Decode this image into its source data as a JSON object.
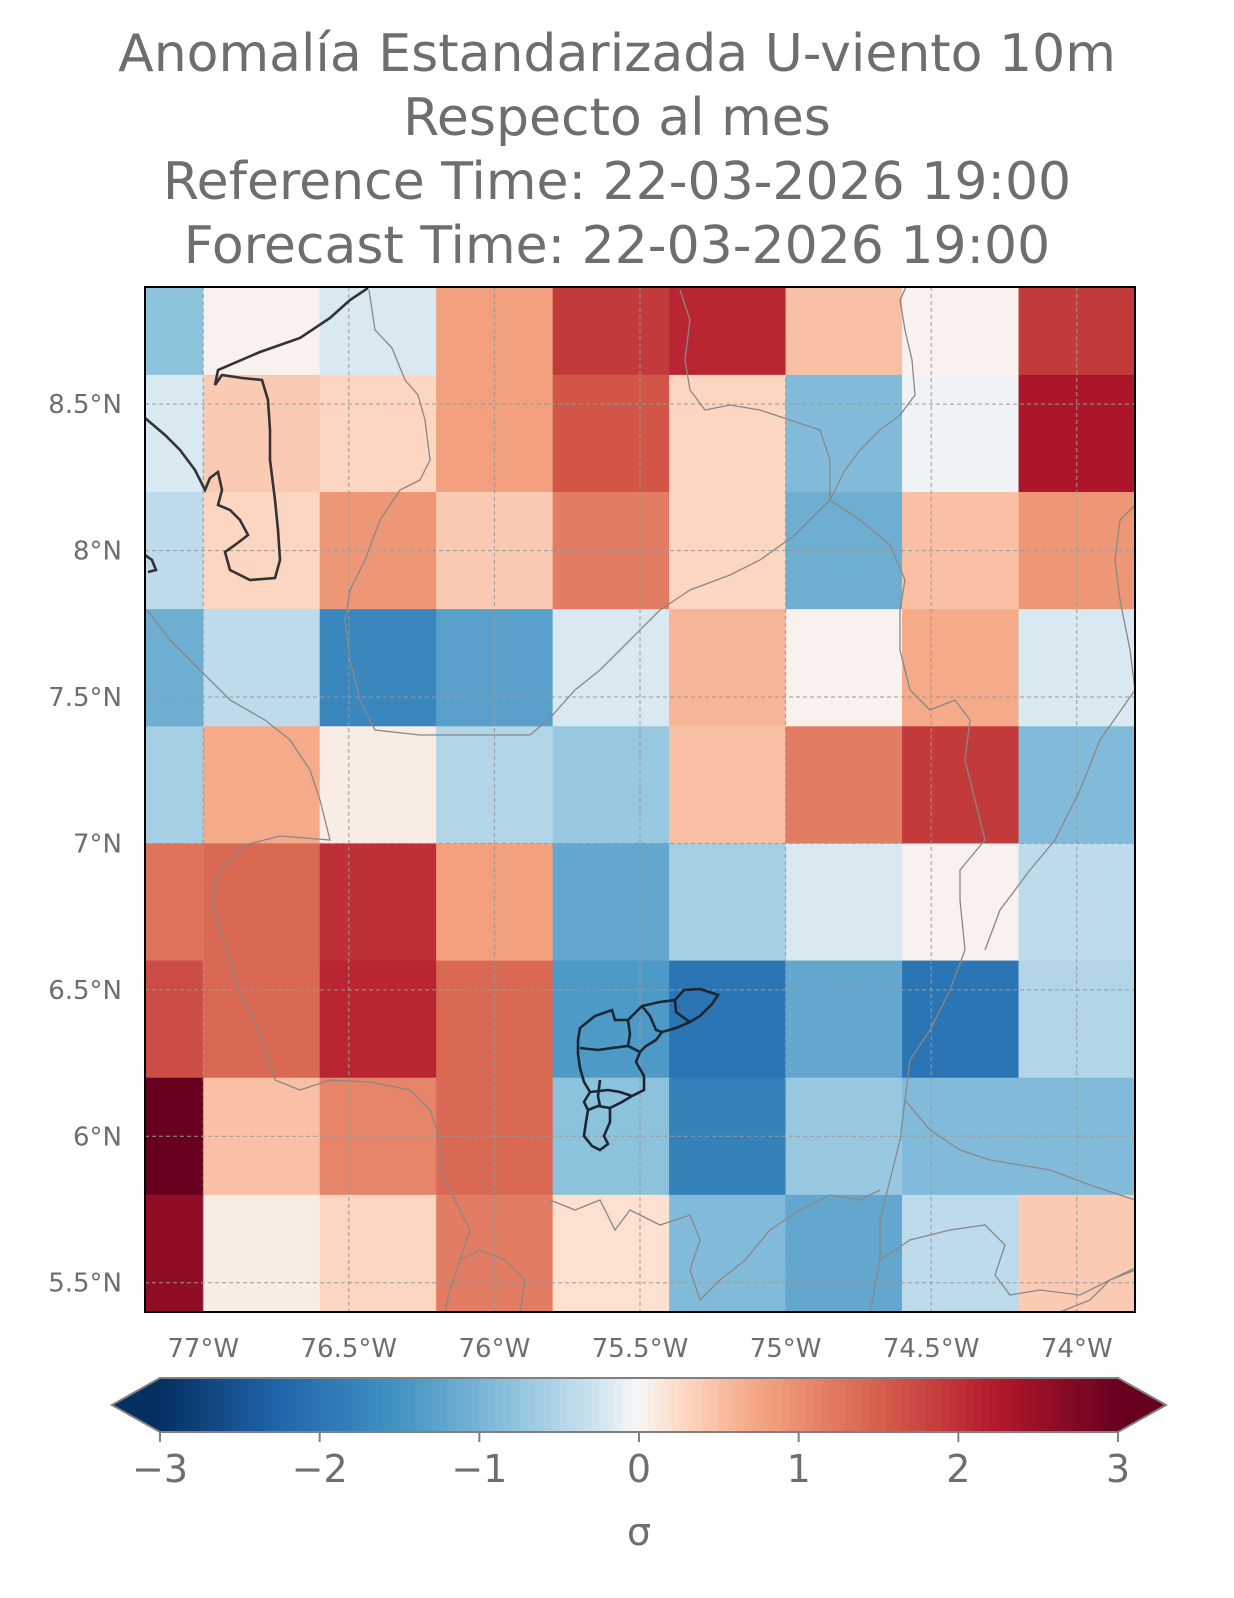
{
  "title": {
    "line1": "Anomalía Estandarizada U-viento 10m",
    "line2": "Respecto al mes",
    "line3": "Reference Time: 22-03-2026 19:00",
    "line4": "Forecast Time: 22-03-2026 19:00"
  },
  "chart_data": {
    "type": "heatmap",
    "title": "Anomalía Estandarizada U-viento 10m / Respecto al mes",
    "reference_time": "22-03-2026 19:00",
    "forecast_time": "22-03-2026 19:00",
    "lon_range": [
      -77.2,
      -73.8
    ],
    "lat_range": [
      5.4,
      8.9
    ],
    "lon_ticks": [
      -77,
      -76.5,
      -76,
      -75.5,
      -75,
      -74.5,
      -74
    ],
    "lon_tick_labels": [
      "77°W",
      "76.5°W",
      "76°W",
      "75.5°W",
      "75°W",
      "74.5°W",
      "74°W"
    ],
    "lat_ticks": [
      5.5,
      6,
      6.5,
      7,
      7.5,
      8,
      8.5
    ],
    "lat_tick_labels": [
      "5.5°N",
      "6°N",
      "6.5°N",
      "7°N",
      "7.5°N",
      "8°N",
      "8.5°N"
    ],
    "grid_lon_edges": [
      -77.2,
      -77.0,
      -76.6,
      -76.2,
      -75.8,
      -75.4,
      -75.0,
      -74.6,
      -74.2,
      -73.8
    ],
    "grid_lat_edges": [
      8.9,
      8.6,
      8.2,
      7.8,
      7.4,
      7.0,
      6.6,
      6.2,
      5.8,
      5.4
    ],
    "values": [
      [
        -0.8,
        0.05,
        -0.2,
        0.8,
        1.9,
        2.1,
        0.5,
        0.05,
        1.9
      ],
      [
        -0.2,
        0.4,
        0.3,
        0.8,
        1.6,
        0.3,
        -0.9,
        -0.05,
        2.3
      ],
      [
        -0.4,
        0.3,
        0.9,
        0.4,
        1.2,
        0.3,
        -1.1,
        0.5,
        0.9
      ],
      [
        -1.1,
        -0.4,
        -1.7,
        -1.3,
        -0.2,
        0.6,
        0.05,
        0.7,
        -0.2
      ],
      [
        -0.6,
        0.7,
        0.1,
        -0.5,
        -0.7,
        0.5,
        1.2,
        1.9,
        -0.9
      ],
      [
        1.3,
        1.4,
        2.0,
        0.8,
        -1.2,
        -0.6,
        -0.2,
        0.05,
        -0.4
      ],
      [
        1.7,
        1.4,
        2.1,
        1.4,
        -1.4,
        -2.0,
        -1.2,
        -2.0,
        -0.5
      ],
      [
        3.0,
        0.5,
        1.1,
        1.4,
        -0.8,
        -1.8,
        -0.7,
        -0.9,
        -0.9
      ],
      [
        2.6,
        0.1,
        0.3,
        1.2,
        0.2,
        -0.9,
        -1.2,
        -0.4,
        0.4
      ]
    ],
    "colorbar": {
      "label": "σ",
      "vmin": -3,
      "vmax": 3,
      "extend": "both",
      "colormap": "RdBu_r",
      "ticks": [
        -3,
        -2,
        -1,
        0,
        1,
        2,
        3
      ],
      "tick_labels": [
        "−3",
        "−2",
        "−1",
        "0",
        "1",
        "2",
        "3"
      ]
    }
  },
  "colors": {
    "text": "#6e6e6e",
    "coastline": "#333333",
    "borders": "#888888",
    "gridlines": "#999999"
  }
}
